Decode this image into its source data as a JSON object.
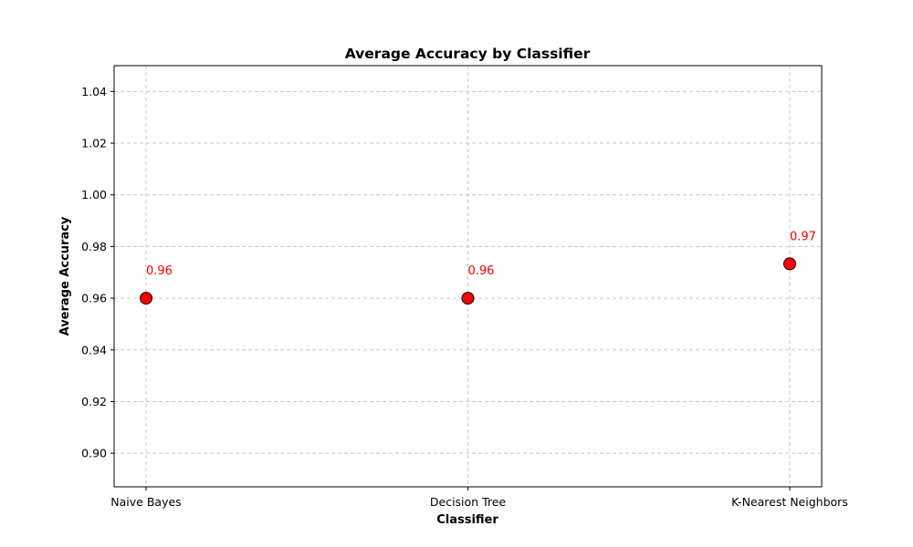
{
  "chart_data": {
    "type": "scatter",
    "title": "Average Accuracy by Classifier",
    "xlabel": "Classifier",
    "ylabel": "Average Accuracy",
    "categories": [
      "Naive Bayes",
      "Decision Tree",
      "K-Nearest Neighbors"
    ],
    "values": [
      0.96,
      0.96,
      0.9733
    ],
    "data_labels": [
      "0.96",
      "0.96",
      "0.97"
    ],
    "ylim": [
      0.887,
      1.05
    ],
    "yticks": [
      0.9,
      0.92,
      0.94,
      0.96,
      0.98,
      1.0,
      1.02,
      1.04
    ],
    "ytick_labels": [
      "0.90",
      "0.92",
      "0.94",
      "0.96",
      "0.98",
      "1.00",
      "1.02",
      "1.04"
    ],
    "grid": true,
    "legend": "none",
    "colors": {
      "marker_fill": "#ff0000",
      "marker_edge": "#000000",
      "label": "#ff0000",
      "grid": "#c8c8c8"
    }
  }
}
